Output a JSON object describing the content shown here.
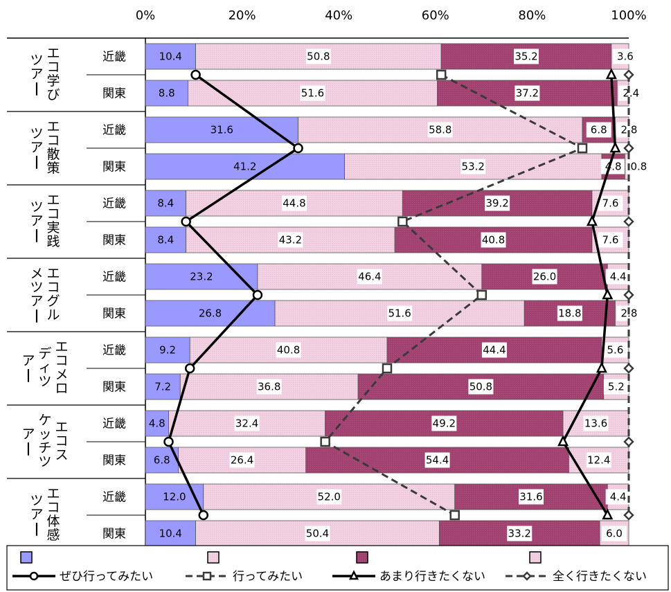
{
  "chart_data": {
    "type": "bar",
    "stacked": true,
    "orientation": "horizontal",
    "x_ticks": [
      "0%",
      "20%",
      "40%",
      "60%",
      "80%",
      "100%"
    ],
    "xlim": [
      0,
      100
    ],
    "groups": [
      {
        "name": "エコ学び\nツアー",
        "rows": [
          {
            "region": "近畿",
            "values": [
              10.4,
              50.8,
              35.2,
              3.6
            ]
          },
          {
            "region": "関東",
            "values": [
              8.8,
              51.6,
              37.2,
              2.4
            ]
          }
        ]
      },
      {
        "name": "エコ散策\nツアー",
        "rows": [
          {
            "region": "近畿",
            "values": [
              31.6,
              58.8,
              6.8,
              2.8
            ]
          },
          {
            "region": "関東",
            "values": [
              41.2,
              53.2,
              4.8,
              0.8
            ]
          }
        ]
      },
      {
        "name": "エコ実践\nツアー",
        "rows": [
          {
            "region": "近畿",
            "values": [
              8.4,
              44.8,
              39.2,
              7.6
            ]
          },
          {
            "region": "関東",
            "values": [
              8.4,
              43.2,
              40.8,
              7.6
            ]
          }
        ]
      },
      {
        "name": "エコグル\nメツアー",
        "rows": [
          {
            "region": "近畿",
            "values": [
              23.2,
              46.4,
              26.0,
              4.4
            ]
          },
          {
            "region": "関東",
            "values": [
              26.8,
              51.6,
              18.8,
              2.8
            ]
          }
        ]
      },
      {
        "name": "エコメロ\nディツ\nアー",
        "rows": [
          {
            "region": "近畿",
            "values": [
              9.2,
              40.8,
              44.4,
              5.6
            ]
          },
          {
            "region": "関東",
            "values": [
              7.2,
              36.8,
              50.8,
              5.2
            ]
          }
        ]
      },
      {
        "name": "エコス\nケッチツ\nアー",
        "rows": [
          {
            "region": "近畿",
            "values": [
              4.8,
              32.4,
              49.2,
              13.6
            ]
          },
          {
            "region": "関東",
            "values": [
              6.8,
              26.4,
              54.4,
              12.4
            ]
          }
        ]
      },
      {
        "name": "エコ体感\nツアー",
        "rows": [
          {
            "region": "近畿",
            "values": [
              12.0,
              52.0,
              31.6,
              4.4
            ]
          },
          {
            "region": "関東",
            "values": [
              10.4,
              50.4,
              33.2,
              6.0
            ]
          }
        ]
      }
    ],
    "legend": [
      "ぜひ行ってみたい",
      "行ってみたい",
      "あまり行きたくない",
      "全く行きたくない"
    ],
    "legend_position": "bottom",
    "colors": [
      "#9999ff",
      "#f2d2e2",
      "#a1416f",
      "#f2d2e2"
    ],
    "line_colors": [
      "#000000",
      "#3a3a3a",
      "#000000",
      "#3a3a3a"
    ]
  }
}
